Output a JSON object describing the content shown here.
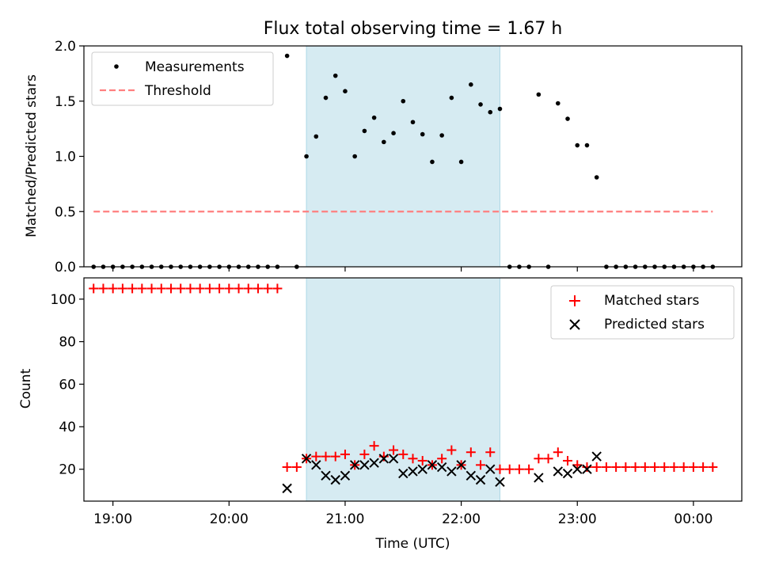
{
  "chart_data": [
    {
      "type": "scatter",
      "title": "Flux total observing time = 1.67 h",
      "xlabel": "",
      "ylabel": "Matched/Predicted stars",
      "xlim": [
        "18:45",
        "00:25"
      ],
      "ylim": [
        0,
        2.0
      ],
      "yticks": [
        "0.0",
        "0.5",
        "1.0",
        "1.5",
        "2.0"
      ],
      "shaded_interval": [
        "20:40",
        "22:20"
      ],
      "legend": [
        "Measurements",
        "Threshold"
      ],
      "legend_position": "top-left",
      "threshold": {
        "name": "Threshold",
        "y": 0.5,
        "x": [
          "18:50",
          "00:10"
        ],
        "color": "#ff7f7f"
      },
      "series": [
        {
          "name": "Measurements",
          "color": "#000000",
          "x": [
            "18:50",
            "18:55",
            "19:00",
            "19:05",
            "19:10",
            "19:15",
            "19:20",
            "19:25",
            "19:30",
            "19:35",
            "19:40",
            "19:45",
            "19:50",
            "19:55",
            "20:00",
            "20:05",
            "20:10",
            "20:15",
            "20:20",
            "20:25",
            "20:30",
            "20:35",
            "20:40",
            "20:45",
            "20:50",
            "20:55",
            "21:00",
            "21:05",
            "21:10",
            "21:15",
            "21:20",
            "21:25",
            "21:30",
            "21:35",
            "21:40",
            "21:45",
            "21:50",
            "21:55",
            "22:00",
            "22:05",
            "22:10",
            "22:15",
            "22:20",
            "22:25",
            "22:30",
            "22:35",
            "22:40",
            "22:45",
            "22:50",
            "22:55",
            "23:00",
            "23:05",
            "23:10",
            "23:15",
            "23:20",
            "23:25",
            "23:30",
            "23:35",
            "23:40",
            "23:45",
            "23:50",
            "23:55",
            "00:00",
            "00:05",
            "00:10"
          ],
          "y": [
            0,
            0,
            0,
            0,
            0,
            0,
            0,
            0,
            0,
            0,
            0,
            0,
            0,
            0,
            0,
            0,
            0,
            0,
            0,
            0,
            1.91,
            0,
            1.0,
            1.18,
            1.53,
            1.73,
            1.59,
            1.0,
            1.23,
            1.35,
            1.13,
            1.21,
            1.5,
            1.31,
            1.2,
            0.95,
            1.19,
            1.53,
            0.95,
            1.65,
            1.47,
            1.4,
            1.43,
            0,
            0,
            0,
            1.56,
            0,
            1.48,
            1.34,
            1.1,
            1.1,
            0.81,
            0,
            0,
            0,
            0,
            0,
            0,
            0,
            0,
            0,
            0,
            0,
            0
          ]
        }
      ]
    },
    {
      "type": "scatter",
      "xlabel": "Time (UTC)",
      "ylabel": "Count",
      "xlim": [
        "18:45",
        "00:25"
      ],
      "xticks": [
        "19:00",
        "20:00",
        "21:00",
        "22:00",
        "23:00",
        "00:00"
      ],
      "ylim": [
        5,
        110
      ],
      "yticks": [
        "20",
        "40",
        "60",
        "80",
        "100"
      ],
      "shaded_interval": [
        "20:40",
        "22:20"
      ],
      "legend": [
        "Matched stars",
        "Predicted stars"
      ],
      "legend_position": "top-right",
      "series": [
        {
          "name": "Matched stars",
          "color": "#ff0000",
          "marker": "+",
          "x": [
            "18:50",
            "18:55",
            "19:00",
            "19:05",
            "19:10",
            "19:15",
            "19:20",
            "19:25",
            "19:30",
            "19:35",
            "19:40",
            "19:45",
            "19:50",
            "19:55",
            "20:00",
            "20:05",
            "20:10",
            "20:15",
            "20:20",
            "20:25",
            "20:30",
            "20:35",
            "20:40",
            "20:45",
            "20:50",
            "20:55",
            "21:00",
            "21:05",
            "21:10",
            "21:15",
            "21:20",
            "21:25",
            "21:30",
            "21:35",
            "21:40",
            "21:45",
            "21:50",
            "21:55",
            "22:00",
            "22:05",
            "22:10",
            "22:15",
            "22:20",
            "22:25",
            "22:30",
            "22:35",
            "22:40",
            "22:45",
            "22:50",
            "22:55",
            "23:00",
            "23:05",
            "23:10",
            "23:15",
            "23:20",
            "23:25",
            "23:30",
            "23:35",
            "23:40",
            "23:45",
            "23:50",
            "23:55",
            "00:00",
            "00:05",
            "00:10"
          ],
          "y": [
            105,
            105,
            105,
            105,
            105,
            105,
            105,
            105,
            105,
            105,
            105,
            105,
            105,
            105,
            105,
            105,
            105,
            105,
            105,
            105,
            21,
            21,
            25,
            26,
            26,
            26,
            27,
            22,
            27,
            31,
            26,
            29,
            27,
            25,
            24,
            22,
            25,
            29,
            22,
            28,
            22,
            28,
            20,
            20,
            20,
            20,
            25,
            25,
            28,
            24,
            22,
            21,
            21,
            21,
            21,
            21,
            21,
            21,
            21,
            21,
            21,
            21,
            21,
            21,
            21
          ]
        },
        {
          "name": "Predicted stars",
          "color": "#000000",
          "marker": "x",
          "x": [
            "20:30",
            "20:40",
            "20:45",
            "20:50",
            "20:55",
            "21:00",
            "21:05",
            "21:10",
            "21:15",
            "21:20",
            "21:25",
            "21:30",
            "21:35",
            "21:40",
            "21:45",
            "21:50",
            "21:55",
            "22:00",
            "22:05",
            "22:10",
            "22:15",
            "22:20",
            "22:40",
            "22:50",
            "22:55",
            "23:00",
            "23:05",
            "23:10"
          ],
          "y": [
            11,
            25,
            22,
            17,
            15,
            17,
            22,
            22,
            23,
            25,
            25,
            18,
            19,
            20,
            22,
            21,
            19,
            22,
            17,
            15,
            20,
            14,
            16,
            19,
            18,
            20,
            20,
            26
          ]
        }
      ]
    }
  ]
}
